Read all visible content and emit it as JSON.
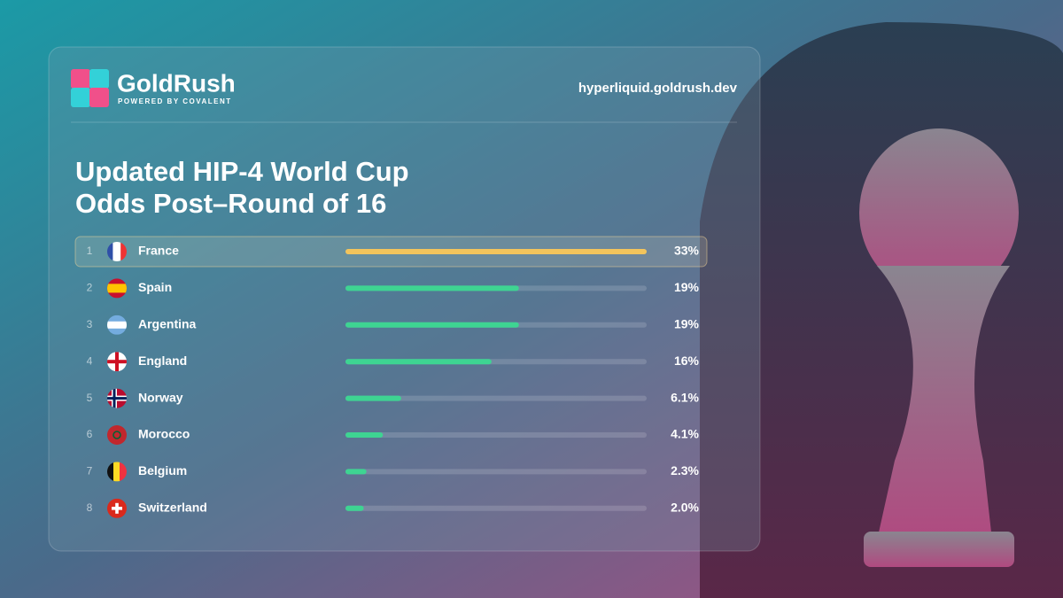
{
  "brand": {
    "name": "GoldRush",
    "tagline": "POWERED BY COVALENT",
    "url": "hyperliquid.goldrush.dev"
  },
  "chart_data": {
    "type": "bar",
    "title": [
      "Updated HIP-4 World Cup",
      "Odds Post–Round of 16"
    ],
    "ranks": [
      1,
      2,
      3,
      4,
      5,
      6,
      7,
      8
    ],
    "categories": [
      "France",
      "Spain",
      "Argentina",
      "England",
      "Norway",
      "Morocco",
      "Belgium",
      "Switzerland"
    ],
    "values": [
      33,
      19,
      19,
      16,
      6.1,
      4.1,
      2.3,
      2.0
    ],
    "value_labels": [
      "33%",
      "19%",
      "19%",
      "16%",
      "6.1%",
      "4.1%",
      "2.3%",
      "2.0%"
    ],
    "colors": [
      "#f2c45c",
      "#3ed492",
      "#3ed492",
      "#3ed492",
      "#3ed492",
      "#3ed492",
      "#3ed492",
      "#3ed492"
    ],
    "xlim": [
      0,
      33
    ]
  }
}
